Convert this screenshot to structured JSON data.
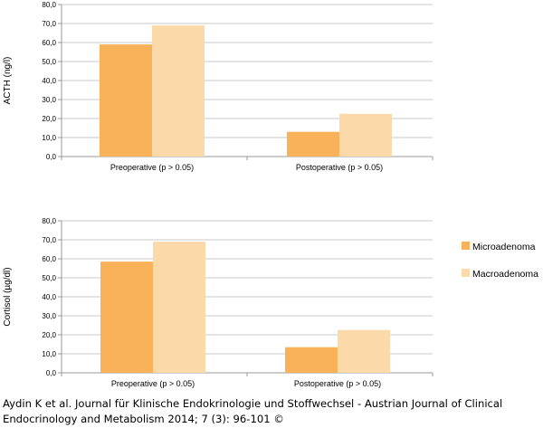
{
  "colors": {
    "microadenoma": "#F9B25A",
    "macroadenoma": "#FCD9A9",
    "grid": "#c8c8c8",
    "axis": "#9a9a9a"
  },
  "chart_data": [
    {
      "type": "bar",
      "ylabel": "ACTH (ng/l)",
      "categories": [
        "Preoperative (p > 0.05)",
        "Postoperative (p > 0.05)"
      ],
      "series": [
        {
          "name": "Microadenoma",
          "values": [
            59.0,
            13.0
          ]
        },
        {
          "name": "Macroadenoma",
          "values": [
            69.0,
            22.5
          ]
        }
      ],
      "ylim": [
        0,
        80
      ],
      "yticks": [
        "0,0",
        "10,0",
        "20,0",
        "30,0",
        "40,0",
        "50,0",
        "60,0",
        "70,0",
        "80,0"
      ],
      "grid": true
    },
    {
      "type": "bar",
      "ylabel": "Cortisol (µg/dl)",
      "categories": [
        "Preoperative (p > 0.05)",
        "Postoperative (p > 0.05)"
      ],
      "series": [
        {
          "name": "Microadenoma",
          "values": [
            58.5,
            13.5
          ]
        },
        {
          "name": "Macroadenoma",
          "values": [
            69.0,
            22.5
          ]
        }
      ],
      "ylim": [
        0,
        80
      ],
      "yticks": [
        "0,0",
        "10,0",
        "20,0",
        "30,0",
        "40,0",
        "50,0",
        "60,0",
        "70,0",
        "80,0"
      ],
      "grid": true
    }
  ],
  "legend": {
    "placement": "right",
    "items": [
      {
        "label": "Microadenoma",
        "color": "#F9B25A"
      },
      {
        "label": "Macroadenoma",
        "color": "#FCD9A9"
      }
    ]
  },
  "caption": {
    "line1": "Aydin K et al. Journal für Klinische Endokrinologie und Stoffwechsel - Austrian Journal of Clinical",
    "line2": "Endocrinology and Metabolism 2014; 7 (3): 96-101 ©"
  }
}
